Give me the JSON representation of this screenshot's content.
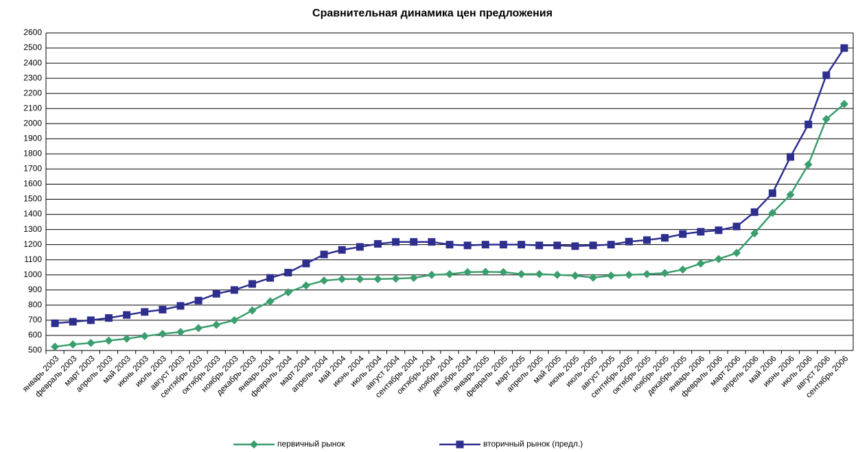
{
  "chart_data": {
    "type": "line",
    "title": "Сравнительная динамика цен предложения",
    "categories": [
      "январь 2003",
      "февраль 2003",
      "март 2003",
      "апрель 2003",
      "май 2003",
      "июнь 2003",
      "июль 2003",
      "август 2003",
      "сентябрь 2003",
      "октябрь 2003",
      "ноябрь 2003",
      "декабрь 2003",
      "январь 2004",
      "февраль 2004",
      "март 2004",
      "апрель 2004",
      "май 2004",
      "июнь 2004",
      "июль 2004",
      "август 2004",
      "сентябрь 2004",
      "октябрь 2004",
      "ноябрь 2004",
      "декабрь 2004",
      "январь 2005",
      "февраль 2005",
      "март 2005",
      "апрель 2005",
      "май 2005",
      "июнь 2005",
      "июль 2005",
      "август 2005",
      "сентябрь 2005",
      "октябрь 2005",
      "ноябрь 2005",
      "декабрь 2005",
      "январь 2006",
      "февраль 2006",
      "март 2006",
      "апрель 2006",
      "май 2006",
      "июнь 2006",
      "июль 2006",
      "август 2006",
      "сентябрь 2006"
    ],
    "series": [
      {
        "name": "первичный рынок",
        "color": "#3a9e6e",
        "values": [
          525,
          540,
          550,
          565,
          578,
          595,
          610,
          622,
          648,
          670,
          700,
          765,
          825,
          885,
          930,
          962,
          972,
          972,
          972,
          975,
          980,
          1000,
          1005,
          1018,
          1020,
          1018,
          1005,
          1005,
          1000,
          995,
          982,
          995,
          1000,
          1005,
          1012,
          1035,
          1075,
          1105,
          1145,
          1275,
          1410,
          1530,
          1730,
          2030,
          2130
        ]
      },
      {
        "name": "вторичный рынок (предл.)",
        "color": "#2e2e8f",
        "values": [
          680,
          690,
          700,
          715,
          735,
          755,
          770,
          795,
          830,
          875,
          900,
          940,
          980,
          1015,
          1075,
          1135,
          1165,
          1185,
          1205,
          1218,
          1218,
          1218,
          1200,
          1195,
          1200,
          1200,
          1200,
          1195,
          1195,
          1190,
          1195,
          1200,
          1220,
          1230,
          1245,
          1270,
          1285,
          1295,
          1320,
          1415,
          1540,
          1780,
          1995,
          2320,
          2500
        ]
      }
    ],
    "ylim": [
      500,
      2600
    ],
    "yticks": [
      500,
      600,
      700,
      800,
      900,
      1000,
      1100,
      1200,
      1300,
      1400,
      1500,
      1600,
      1700,
      1800,
      1900,
      2000,
      2100,
      2200,
      2300,
      2400,
      2500,
      2600
    ],
    "grid": true,
    "legend": "bottom"
  }
}
